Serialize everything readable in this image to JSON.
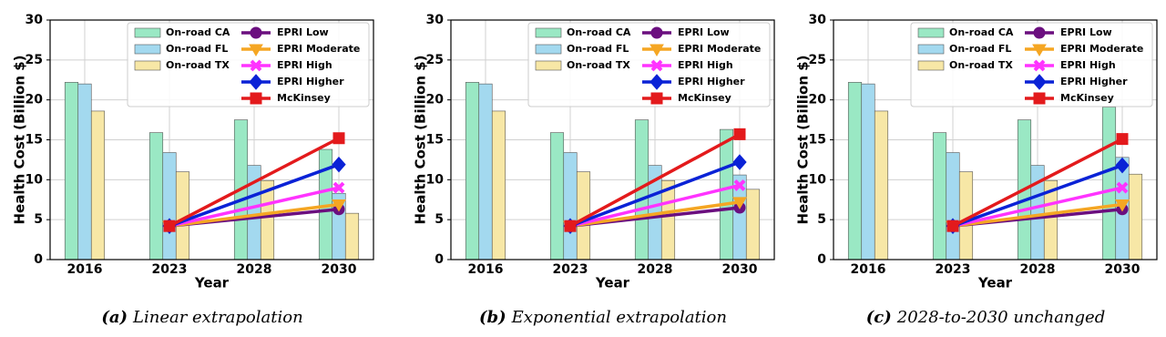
{
  "chart_data": [
    {
      "type": "bar",
      "caption": {
        "label": "(a)",
        "text": "Linear extrapolation"
      },
      "xlabel": "Year",
      "ylabel": "Health Cost (Billion $)",
      "categories": [
        "2016",
        "2023",
        "2028",
        "2030"
      ],
      "ylim": [
        0,
        30
      ],
      "yticks": [
        0,
        5,
        10,
        15,
        20,
        25,
        30
      ],
      "grid": true,
      "legend": "upper right",
      "series": [
        {
          "name": "On-road CA",
          "type": "bar",
          "color": "#9ae8c4",
          "values": [
            22.2,
            15.9,
            17.5,
            13.8
          ]
        },
        {
          "name": "On-road FL",
          "type": "bar",
          "color": "#a3d9ef",
          "values": [
            22.0,
            13.4,
            11.8,
            8.3
          ]
        },
        {
          "name": "On-road TX",
          "type": "bar",
          "color": "#f7e7a6",
          "values": [
            18.6,
            11.0,
            9.9,
            5.8
          ]
        },
        {
          "name": "EPRI Low",
          "type": "line",
          "color": "#6b0f7f",
          "marker": "o",
          "x": [
            "2023",
            "2030"
          ],
          "values": [
            4.2,
            6.3
          ]
        },
        {
          "name": "EPRI Moderate",
          "type": "line",
          "color": "#f5a623",
          "marker": "v",
          "x": [
            "2023",
            "2030"
          ],
          "values": [
            4.2,
            6.9
          ]
        },
        {
          "name": "EPRI High",
          "type": "line",
          "color": "#ff33ff",
          "marker": "x",
          "x": [
            "2023",
            "2030"
          ],
          "values": [
            4.2,
            9.0
          ]
        },
        {
          "name": "EPRI Higher",
          "type": "line",
          "color": "#0a22d6",
          "marker": "D",
          "x": [
            "2023",
            "2030"
          ],
          "values": [
            4.2,
            11.9
          ]
        },
        {
          "name": "McKinsey",
          "type": "line",
          "color": "#e31a1c",
          "marker": "s",
          "x": [
            "2023",
            "2030"
          ],
          "values": [
            4.2,
            15.2
          ]
        }
      ]
    },
    {
      "type": "bar",
      "caption": {
        "label": "(b)",
        "text": "Exponential extrapolation"
      },
      "xlabel": "Year",
      "ylabel": "Health Cost (Billion $)",
      "categories": [
        "2016",
        "2023",
        "2028",
        "2030"
      ],
      "ylim": [
        0,
        30
      ],
      "yticks": [
        0,
        5,
        10,
        15,
        20,
        25,
        30
      ],
      "grid": true,
      "legend": "upper right",
      "series": [
        {
          "name": "On-road CA",
          "type": "bar",
          "color": "#9ae8c4",
          "values": [
            22.2,
            15.9,
            17.5,
            16.3
          ]
        },
        {
          "name": "On-road FL",
          "type": "bar",
          "color": "#a3d9ef",
          "values": [
            22.0,
            13.4,
            11.8,
            10.6
          ]
        },
        {
          "name": "On-road TX",
          "type": "bar",
          "color": "#f7e7a6",
          "values": [
            18.6,
            11.0,
            9.9,
            8.8
          ]
        },
        {
          "name": "EPRI Low",
          "type": "line",
          "color": "#6b0f7f",
          "marker": "o",
          "x": [
            "2023",
            "2030"
          ],
          "values": [
            4.2,
            6.5
          ]
        },
        {
          "name": "EPRI Moderate",
          "type": "line",
          "color": "#f5a623",
          "marker": "v",
          "x": [
            "2023",
            "2030"
          ],
          "values": [
            4.2,
            7.2
          ]
        },
        {
          "name": "EPRI High",
          "type": "line",
          "color": "#ff33ff",
          "marker": "x",
          "x": [
            "2023",
            "2030"
          ],
          "values": [
            4.2,
            9.3
          ]
        },
        {
          "name": "EPRI Higher",
          "type": "line",
          "color": "#0a22d6",
          "marker": "D",
          "x": [
            "2023",
            "2030"
          ],
          "values": [
            4.2,
            12.2
          ]
        },
        {
          "name": "McKinsey",
          "type": "line",
          "color": "#e31a1c",
          "marker": "s",
          "x": [
            "2023",
            "2030"
          ],
          "values": [
            4.2,
            15.7
          ]
        }
      ]
    },
    {
      "type": "bar",
      "caption": {
        "label": "(c)",
        "text": "2028-to-2030 unchanged"
      },
      "xlabel": "Year",
      "ylabel": "Health Cost (Billion $)",
      "categories": [
        "2016",
        "2023",
        "2028",
        "2030"
      ],
      "ylim": [
        0,
        30
      ],
      "yticks": [
        0,
        5,
        10,
        15,
        20,
        25,
        30
      ],
      "grid": true,
      "legend": "upper right",
      "series": [
        {
          "name": "On-road CA",
          "type": "bar",
          "color": "#9ae8c4",
          "values": [
            22.2,
            15.9,
            17.5,
            19.1
          ]
        },
        {
          "name": "On-road FL",
          "type": "bar",
          "color": "#a3d9ef",
          "values": [
            22.0,
            13.4,
            11.8,
            12.8
          ]
        },
        {
          "name": "On-road TX",
          "type": "bar",
          "color": "#f7e7a6",
          "values": [
            18.6,
            11.0,
            9.9,
            10.7
          ]
        },
        {
          "name": "EPRI Low",
          "type": "line",
          "color": "#6b0f7f",
          "marker": "o",
          "x": [
            "2023",
            "2030"
          ],
          "values": [
            4.2,
            6.3
          ]
        },
        {
          "name": "EPRI Moderate",
          "type": "line",
          "color": "#f5a623",
          "marker": "v",
          "x": [
            "2023",
            "2030"
          ],
          "values": [
            4.2,
            6.9
          ]
        },
        {
          "name": "EPRI High",
          "type": "line",
          "color": "#ff33ff",
          "marker": "x",
          "x": [
            "2023",
            "2030"
          ],
          "values": [
            4.2,
            9.0
          ]
        },
        {
          "name": "EPRI Higher",
          "type": "line",
          "color": "#0a22d6",
          "marker": "D",
          "x": [
            "2023",
            "2030"
          ],
          "values": [
            4.2,
            11.8
          ]
        },
        {
          "name": "McKinsey",
          "type": "line",
          "color": "#e31a1c",
          "marker": "s",
          "x": [
            "2023",
            "2030"
          ],
          "values": [
            4.2,
            15.1
          ]
        }
      ]
    }
  ]
}
